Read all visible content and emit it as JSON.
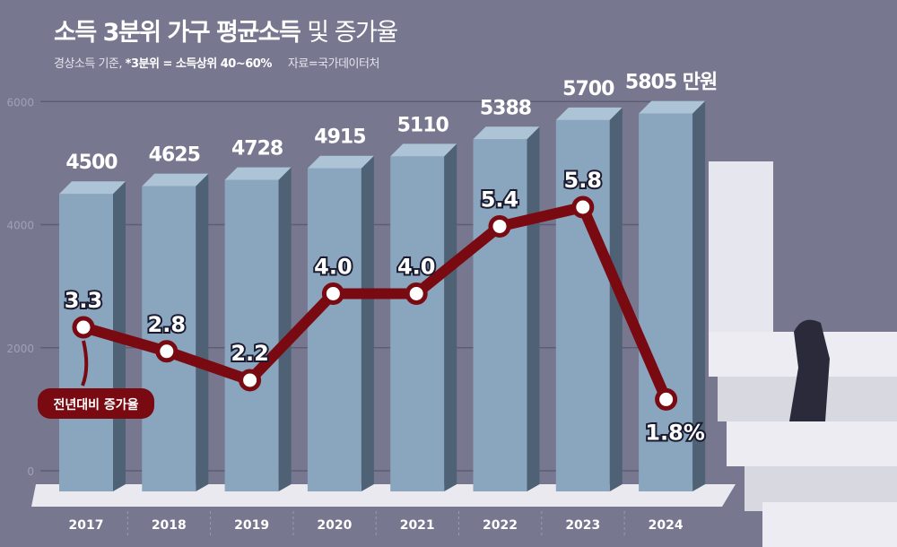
{
  "title_bold": "소득 3분위 가구 평균소득",
  "title_light": "및 증가율",
  "subtitle_note": "경상소득 기준,",
  "subtitle_def": "*3분위 = 소득상위 40~60%",
  "subtitle_source": "자료=국가데이터처",
  "colors": {
    "background": "#77778f",
    "bar": "#8aa6bf",
    "line": "#7a0a12"
  },
  "chart_data": {
    "type": "bar+line",
    "categories": [
      "2017",
      "2018",
      "2019",
      "2020",
      "2021",
      "2022",
      "2023",
      "2024"
    ],
    "series": [
      {
        "type": "bar",
        "values": [
          4500,
          4625,
          4728,
          4915,
          5110,
          5388,
          5700,
          5805
        ],
        "labels": [
          "4500",
          "4625",
          "4728",
          "4915",
          "5110",
          "5388",
          "5700",
          "5805 만원"
        ]
      },
      {
        "type": "line",
        "name": "전년대비 증가율",
        "values": [
          3.3,
          2.8,
          2.2,
          4.0,
          4.0,
          5.4,
          5.8,
          1.8
        ],
        "labels": [
          "3.3",
          "2.8",
          "2.2",
          "4.0",
          "4.0",
          "5.4",
          "5.8",
          "1.8%"
        ]
      }
    ],
    "yticks": [
      "0",
      "2000",
      "4000",
      "6000"
    ],
    "ylim": [
      0,
      6000
    ],
    "grid": true
  }
}
